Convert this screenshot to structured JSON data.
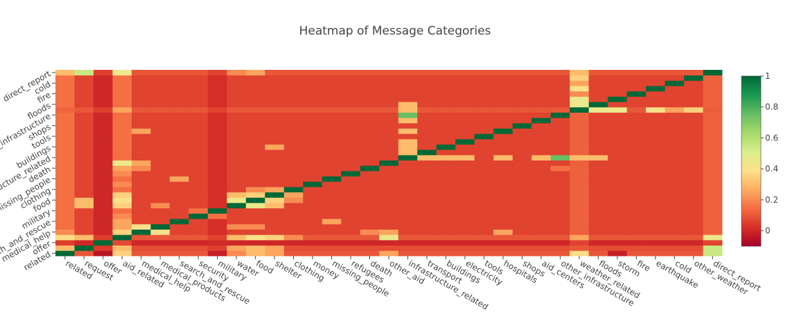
{
  "chart_data": {
    "type": "heatmap",
    "title": "Heatmap of Message Categories",
    "xlabel": "",
    "ylabel": "",
    "categories": [
      "related",
      "request",
      "offer",
      "aid_related",
      "medical_help",
      "medical_products",
      "search_and_rescue",
      "security",
      "military",
      "water",
      "food",
      "shelter",
      "clothing",
      "money",
      "missing_people",
      "refugees",
      "death",
      "other_aid",
      "infrastructure_related",
      "transport",
      "buildings",
      "electricity",
      "tools",
      "hospitals",
      "shops",
      "aid_centers",
      "other_infrastructure",
      "weather_related",
      "floods",
      "storm",
      "fire",
      "earthquake",
      "cold",
      "other_weather",
      "direct_report"
    ],
    "x_tick_labels": [
      "related",
      "request",
      "offer",
      "aid_related",
      "medical_help",
      "medical_products",
      "search_and_rescue",
      "security",
      "military",
      "water",
      "food",
      "shelter",
      "clothing",
      "money",
      "missing_people",
      "refugees",
      "death",
      "other_aid",
      "infrastructure_related",
      "transport",
      "buildings",
      "electricity",
      "tools",
      "hospitals",
      "shops",
      "aid_centers",
      "other_infrastructure",
      "weather_related",
      "floods",
      "storm",
      "fire",
      "earthquake",
      "cold",
      "other_weather",
      "direct_report"
    ],
    "y_tick_labels": [
      "related",
      "offer",
      "medical_help",
      "search_and_rescue",
      "military",
      "food",
      "clothing",
      "missing_people",
      "death",
      "infrastructure_related",
      "buildings",
      "tools",
      "shops",
      "other_infrastructure",
      "floods",
      "fire",
      "cold",
      "direct_report"
    ],
    "zmin": -0.1,
    "zmax": 1,
    "colorscale": [
      "#a50026",
      "#d73027",
      "#f46d43",
      "#fdae61",
      "#fee08b",
      "#d9ef8b",
      "#a6d96a",
      "#66bd63",
      "#1a9850",
      "#006837"
    ],
    "colorbar": {
      "tickvals": [
        0,
        0.2,
        0.4,
        0.6,
        0.8,
        1
      ],
      "ticklabels": [
        "0",
        "0.2",
        "0.4",
        "0.6",
        "0.8",
        "1"
      ]
    },
    "default_value": 0.06,
    "row_defaults": {
      "related": 0.1,
      "request": 0.08,
      "offer": 0.0,
      "aid_related": 0.1,
      "weather_related": 0.1,
      "direct_report": 0.1
    },
    "col_defaults": {
      "related": 0.15,
      "offer": 0.0,
      "aid_related": 0.15,
      "military": 0.02,
      "weather_related": 0.12,
      "direct_report": 0.12
    },
    "cells": [
      {
        "row": "related",
        "col": "related",
        "value": 1
      },
      {
        "row": "related",
        "col": "aid_related",
        "value": 0.35
      },
      {
        "row": "related",
        "col": "water",
        "value": 0.2
      },
      {
        "row": "related",
        "col": "food",
        "value": 0.3
      },
      {
        "row": "related",
        "col": "shelter",
        "value": 0.25
      },
      {
        "row": "related",
        "col": "other_aid",
        "value": 0.25
      },
      {
        "row": "related",
        "col": "weather_related",
        "value": 0.38
      },
      {
        "row": "related",
        "col": "direct_report",
        "value": 0.55
      },
      {
        "row": "related",
        "col": "offer",
        "value": -0.05
      },
      {
        "row": "related",
        "col": "military",
        "value": -0.02
      },
      {
        "row": "related",
        "col": "storm",
        "value": -0.02
      },
      {
        "row": "request",
        "col": "request",
        "value": 1
      },
      {
        "row": "request",
        "col": "related",
        "value": 0.3
      },
      {
        "row": "request",
        "col": "aid_related",
        "value": 0.3
      },
      {
        "row": "request",
        "col": "water",
        "value": 0.25
      },
      {
        "row": "request",
        "col": "food",
        "value": 0.3
      },
      {
        "row": "request",
        "col": "shelter",
        "value": 0.25
      },
      {
        "row": "request",
        "col": "direct_report",
        "value": 0.55
      },
      {
        "row": "offer",
        "col": "offer",
        "value": 1
      },
      {
        "row": "offer",
        "col": "related",
        "value": 0.05
      },
      {
        "row": "offer",
        "col": "request",
        "value": 0.0
      },
      {
        "row": "aid_related",
        "col": "aid_related",
        "value": 1
      },
      {
        "row": "aid_related",
        "col": "related",
        "value": 0.38
      },
      {
        "row": "aid_related",
        "col": "request",
        "value": 0.3
      },
      {
        "row": "aid_related",
        "col": "water",
        "value": 0.3
      },
      {
        "row": "aid_related",
        "col": "food",
        "value": 0.4
      },
      {
        "row": "aid_related",
        "col": "shelter",
        "value": 0.35
      },
      {
        "row": "aid_related",
        "col": "clothing",
        "value": 0.2
      },
      {
        "row": "aid_related",
        "col": "other_aid",
        "value": 0.45
      },
      {
        "row": "aid_related",
        "col": "weather_related",
        "value": 0.25
      },
      {
        "row": "aid_related",
        "col": "direct_report",
        "value": 0.45
      },
      {
        "row": "medical_help",
        "col": "medical_help",
        "value": 1
      },
      {
        "row": "medical_help",
        "col": "related",
        "value": 0.2
      },
      {
        "row": "medical_help",
        "col": "aid_related",
        "value": 0.35
      },
      {
        "row": "medical_help",
        "col": "medical_products",
        "value": 0.4
      },
      {
        "row": "medical_help",
        "col": "hospitals",
        "value": 0.25
      },
      {
        "row": "medical_help",
        "col": "other_aid",
        "value": 0.25
      },
      {
        "row": "medical_help",
        "col": "death",
        "value": 0.2
      },
      {
        "row": "medical_products",
        "col": "medical_products",
        "value": 1
      },
      {
        "row": "medical_products",
        "col": "medical_help",
        "value": 0.4
      },
      {
        "row": "medical_products",
        "col": "aid_related",
        "value": 0.25
      },
      {
        "row": "medical_products",
        "col": "water",
        "value": 0.2
      },
      {
        "row": "medical_products",
        "col": "food",
        "value": 0.2
      },
      {
        "row": "search_and_rescue",
        "col": "search_and_rescue",
        "value": 1
      },
      {
        "row": "search_and_rescue",
        "col": "aid_related",
        "value": 0.25
      },
      {
        "row": "search_and_rescue",
        "col": "missing_people",
        "value": 0.25
      },
      {
        "row": "security",
        "col": "security",
        "value": 1
      },
      {
        "row": "security",
        "col": "aid_related",
        "value": 0.2
      },
      {
        "row": "security",
        "col": "military",
        "value": 0.15
      },
      {
        "row": "military",
        "col": "military",
        "value": 1
      },
      {
        "row": "military",
        "col": "aid_related",
        "value": 0.15
      },
      {
        "row": "military",
        "col": "security",
        "value": 0.15
      },
      {
        "row": "water",
        "col": "water",
        "value": 1
      },
      {
        "row": "water",
        "col": "food",
        "value": 0.45
      },
      {
        "row": "water",
        "col": "aid_related",
        "value": 0.35
      },
      {
        "row": "water",
        "col": "request",
        "value": 0.3
      },
      {
        "row": "water",
        "col": "shelter",
        "value": 0.3
      },
      {
        "row": "water",
        "col": "medical_products",
        "value": 0.2
      },
      {
        "row": "food",
        "col": "food",
        "value": 1
      },
      {
        "row": "food",
        "col": "water",
        "value": 0.45
      },
      {
        "row": "food",
        "col": "aid_related",
        "value": 0.4
      },
      {
        "row": "food",
        "col": "request",
        "value": 0.3
      },
      {
        "row": "food",
        "col": "shelter",
        "value": 0.35
      },
      {
        "row": "food",
        "col": "clothing",
        "value": 0.2
      },
      {
        "row": "shelter",
        "col": "shelter",
        "value": 1
      },
      {
        "row": "shelter",
        "col": "food",
        "value": 0.35
      },
      {
        "row": "shelter",
        "col": "water",
        "value": 0.3
      },
      {
        "row": "shelter",
        "col": "aid_related",
        "value": 0.35
      },
      {
        "row": "shelter",
        "col": "clothing",
        "value": 0.25
      },
      {
        "row": "clothing",
        "col": "clothing",
        "value": 1
      },
      {
        "row": "clothing",
        "col": "shelter",
        "value": 0.25
      },
      {
        "row": "clothing",
        "col": "food",
        "value": 0.2
      },
      {
        "row": "money",
        "col": "money",
        "value": 1
      },
      {
        "row": "money",
        "col": "aid_related",
        "value": 0.2
      },
      {
        "row": "missing_people",
        "col": "missing_people",
        "value": 1
      },
      {
        "row": "missing_people",
        "col": "search_and_rescue",
        "value": 0.25
      },
      {
        "row": "refugees",
        "col": "refugees",
        "value": 1
      },
      {
        "row": "refugees",
        "col": "aid_related",
        "value": 0.2
      },
      {
        "row": "death",
        "col": "death",
        "value": 1
      },
      {
        "row": "death",
        "col": "medical_help",
        "value": 0.2
      },
      {
        "row": "death",
        "col": "aid_related",
        "value": 0.25
      },
      {
        "row": "death",
        "col": "other_infrastructure",
        "value": 0.15
      },
      {
        "row": "other_aid",
        "col": "other_aid",
        "value": 1
      },
      {
        "row": "other_aid",
        "col": "aid_related",
        "value": 0.45
      },
      {
        "row": "other_aid",
        "col": "medical_help",
        "value": 0.25
      },
      {
        "row": "infrastructure_related",
        "col": "infrastructure_related",
        "value": 1
      },
      {
        "row": "infrastructure_related",
        "col": "other_infrastructure",
        "value": 0.75
      },
      {
        "row": "infrastructure_related",
        "col": "buildings",
        "value": 0.3
      },
      {
        "row": "infrastructure_related",
        "col": "transport",
        "value": 0.3
      },
      {
        "row": "infrastructure_related",
        "col": "electricity",
        "value": 0.3
      },
      {
        "row": "infrastructure_related",
        "col": "hospitals",
        "value": 0.3
      },
      {
        "row": "infrastructure_related",
        "col": "aid_centers",
        "value": 0.3
      },
      {
        "row": "infrastructure_related",
        "col": "weather_related",
        "value": 0.3
      },
      {
        "row": "infrastructure_related",
        "col": "floods",
        "value": 0.3
      },
      {
        "row": "transport",
        "col": "transport",
        "value": 1
      },
      {
        "row": "transport",
        "col": "infrastructure_related",
        "value": 0.3
      },
      {
        "row": "buildings",
        "col": "buildings",
        "value": 1
      },
      {
        "row": "buildings",
        "col": "infrastructure_related",
        "value": 0.3
      },
      {
        "row": "buildings",
        "col": "shelter",
        "value": 0.25
      },
      {
        "row": "electricity",
        "col": "electricity",
        "value": 1
      },
      {
        "row": "electricity",
        "col": "infrastructure_related",
        "value": 0.3
      },
      {
        "row": "tools",
        "col": "tools",
        "value": 1
      },
      {
        "row": "hospitals",
        "col": "hospitals",
        "value": 1
      },
      {
        "row": "hospitals",
        "col": "medical_help",
        "value": 0.25
      },
      {
        "row": "hospitals",
        "col": "infrastructure_related",
        "value": 0.3
      },
      {
        "row": "shops",
        "col": "shops",
        "value": 1
      },
      {
        "row": "aid_centers",
        "col": "aid_centers",
        "value": 1
      },
      {
        "row": "aid_centers",
        "col": "infrastructure_related",
        "value": 0.3
      },
      {
        "row": "other_infrastructure",
        "col": "other_infrastructure",
        "value": 1
      },
      {
        "row": "other_infrastructure",
        "col": "infrastructure_related",
        "value": 0.75
      },
      {
        "row": "weather_related",
        "col": "weather_related",
        "value": 1
      },
      {
        "row": "weather_related",
        "col": "floods",
        "value": 0.45
      },
      {
        "row": "weather_related",
        "col": "storm",
        "value": 0.45
      },
      {
        "row": "weather_related",
        "col": "earthquake",
        "value": 0.4
      },
      {
        "row": "weather_related",
        "col": "other_weather",
        "value": 0.35
      },
      {
        "row": "weather_related",
        "col": "cold",
        "value": 0.25
      },
      {
        "row": "weather_related",
        "col": "infrastructure_related",
        "value": 0.3
      },
      {
        "row": "weather_related",
        "col": "aid_related",
        "value": 0.25
      },
      {
        "row": "floods",
        "col": "floods",
        "value": 1
      },
      {
        "row": "floods",
        "col": "weather_related",
        "value": 0.45
      },
      {
        "row": "floods",
        "col": "infrastructure_related",
        "value": 0.3
      },
      {
        "row": "storm",
        "col": "storm",
        "value": 1
      },
      {
        "row": "storm",
        "col": "weather_related",
        "value": 0.45
      },
      {
        "row": "fire",
        "col": "fire",
        "value": 1
      },
      {
        "row": "fire",
        "col": "weather_related",
        "value": 0.2
      },
      {
        "row": "earthquake",
        "col": "earthquake",
        "value": 1
      },
      {
        "row": "earthquake",
        "col": "weather_related",
        "value": 0.4
      },
      {
        "row": "cold",
        "col": "cold",
        "value": 1
      },
      {
        "row": "cold",
        "col": "weather_related",
        "value": 0.25
      },
      {
        "row": "other_weather",
        "col": "other_weather",
        "value": 1
      },
      {
        "row": "other_weather",
        "col": "weather_related",
        "value": 0.35
      },
      {
        "row": "direct_report",
        "col": "direct_report",
        "value": 1
      },
      {
        "row": "direct_report",
        "col": "related",
        "value": 0.3
      },
      {
        "row": "direct_report",
        "col": "request",
        "value": 0.55
      },
      {
        "row": "direct_report",
        "col": "aid_related",
        "value": 0.45
      },
      {
        "row": "direct_report",
        "col": "weather_related",
        "value": 0.3
      },
      {
        "row": "direct_report",
        "col": "water",
        "value": 0.2
      },
      {
        "row": "direct_report",
        "col": "food",
        "value": 0.25
      }
    ]
  }
}
